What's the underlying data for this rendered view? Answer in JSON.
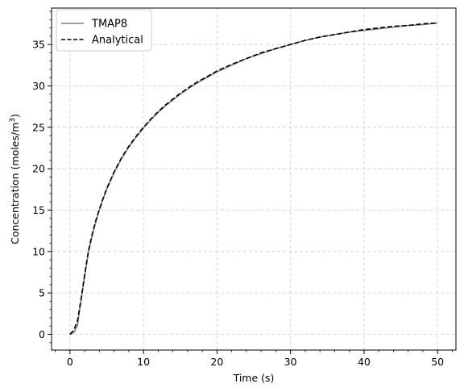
{
  "chart_data": {
    "type": "line",
    "title": "",
    "xlabel": "Time (s)",
    "ylabel_main": "Concentration (moles/m",
    "ylabel_sup": "3",
    "ylabel_end": ")",
    "xlim": [
      -2.5,
      52.5
    ],
    "ylim": [
      -1.9,
      39.4
    ],
    "xticks": [
      0,
      10,
      20,
      30,
      40,
      50
    ],
    "yticks": [
      0,
      5,
      10,
      15,
      20,
      25,
      30,
      35
    ],
    "grid": true,
    "legend_position": "upper-left",
    "series": [
      {
        "name": "TMAP8",
        "color": "#808080",
        "style": "solid",
        "x": [
          0,
          0.5,
          1,
          1.5,
          2,
          2.5,
          3,
          3.5,
          4,
          4.5,
          5,
          6,
          7,
          8,
          9,
          10,
          11,
          12,
          13,
          14,
          15,
          16,
          17,
          18,
          19,
          20,
          22,
          24,
          26,
          28,
          30,
          32,
          34,
          36,
          38,
          40,
          42,
          44,
          46,
          48,
          50
        ],
        "y": [
          0,
          0.2,
          1.0,
          4.0,
          7.0,
          9.8,
          11.8,
          13.5,
          15.0,
          16.3,
          17.5,
          19.5,
          21.2,
          22.6,
          23.8,
          24.9,
          25.9,
          26.8,
          27.6,
          28.3,
          29.0,
          29.6,
          30.2,
          30.7,
          31.2,
          31.7,
          32.5,
          33.3,
          33.9,
          34.5,
          35.0,
          35.5,
          35.9,
          36.2,
          36.5,
          36.7,
          36.9,
          37.1,
          37.3,
          37.4,
          37.6
        ]
      },
      {
        "name": "Analytical",
        "color": "#000000",
        "style": "dashed",
        "x": [
          0,
          0.5,
          1,
          1.5,
          2,
          2.5,
          3,
          3.5,
          4,
          4.5,
          5,
          6,
          7,
          8,
          9,
          10,
          11,
          12,
          13,
          14,
          15,
          16,
          17,
          18,
          19,
          20,
          22,
          24,
          26,
          28,
          30,
          32,
          34,
          36,
          38,
          40,
          42,
          44,
          46,
          48,
          50
        ],
        "y": [
          0,
          0.5,
          1.5,
          4.2,
          7.2,
          10.0,
          12.0,
          13.7,
          15.1,
          16.4,
          17.6,
          19.6,
          21.3,
          22.7,
          23.9,
          25.0,
          26.0,
          26.9,
          27.7,
          28.4,
          29.1,
          29.7,
          30.3,
          30.8,
          31.3,
          31.8,
          32.6,
          33.3,
          34.0,
          34.5,
          35.0,
          35.5,
          35.9,
          36.2,
          36.5,
          36.8,
          37.0,
          37.2,
          37.3,
          37.5,
          37.6
        ]
      }
    ]
  }
}
